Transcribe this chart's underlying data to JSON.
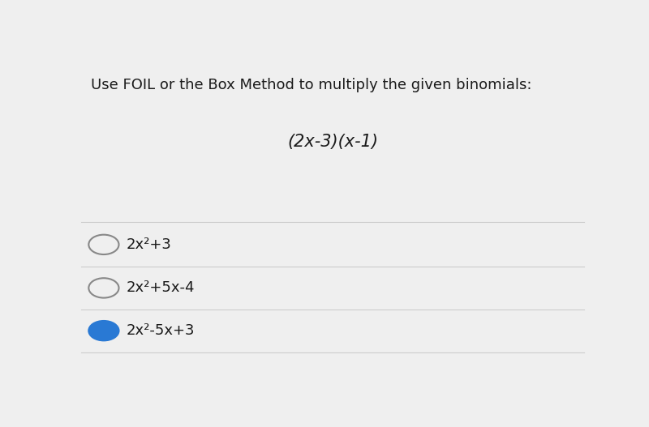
{
  "background_color": "#efefef",
  "instruction_text": "Use FOIL or the Box Method to multiply the given binomials:",
  "problem_text": "(2x-3)(x-1)",
  "options": [
    {
      "label": "2x²+3",
      "selected": false
    },
    {
      "label": "2x²+5x-4",
      "selected": false
    },
    {
      "label": "2x²-5x+3",
      "selected": true
    }
  ],
  "instruction_fontsize": 13,
  "problem_fontsize": 15,
  "option_fontsize": 13,
  "text_color": "#1a1a1a",
  "selected_color": "#2979d4",
  "unselected_color": "#888888",
  "divider_color": "#cccccc",
  "divider_lw": 0.8
}
